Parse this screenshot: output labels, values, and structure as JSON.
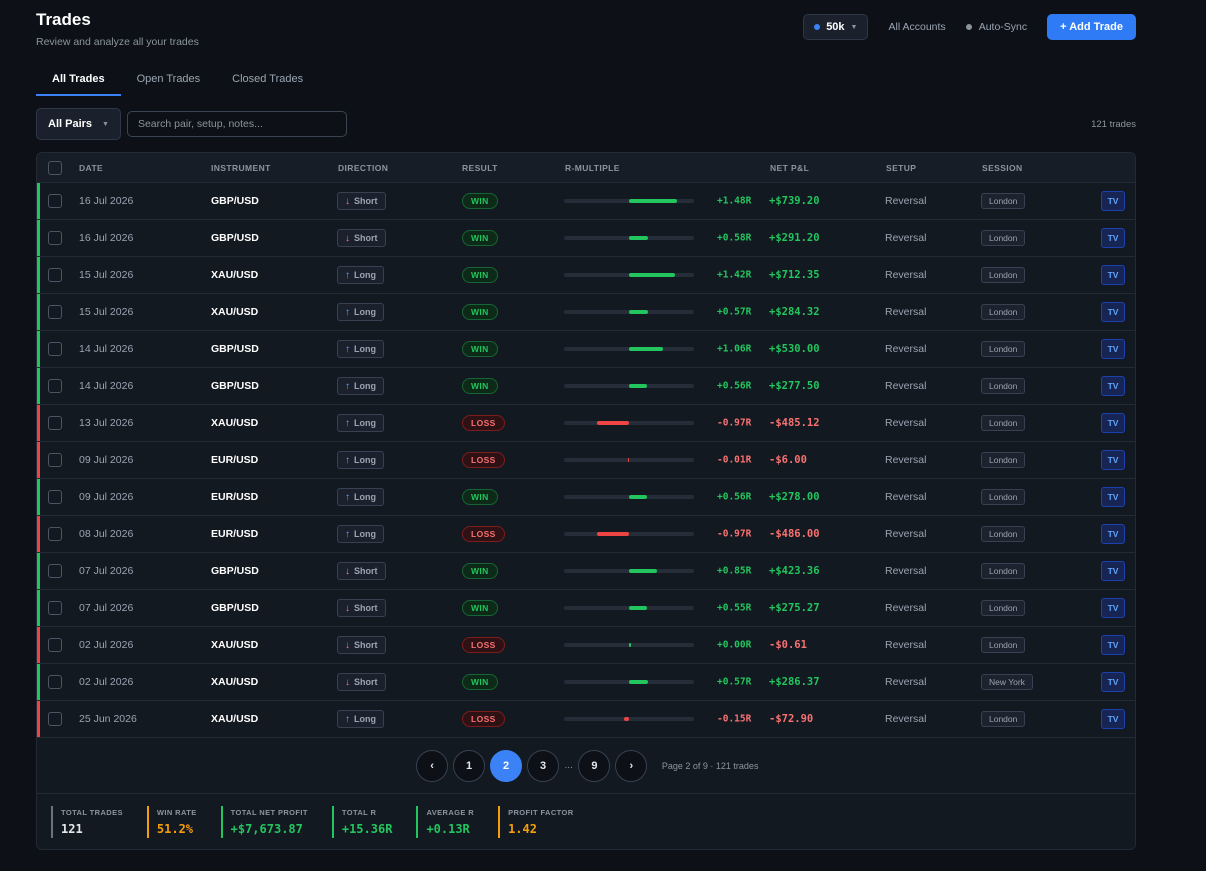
{
  "header": {
    "title": "Trades",
    "subtitle": "Review and analyze all your trades",
    "account_label": "50k",
    "all_accounts_label": "All Accounts",
    "auto_sync_label": "Auto-Sync",
    "add_trade_label": "+ Add Trade"
  },
  "tabs": [
    {
      "label": "All Trades"
    },
    {
      "label": "Open Trades"
    },
    {
      "label": "Closed Trades"
    }
  ],
  "filters": {
    "pair_select_label": "All Pairs",
    "search_placeholder": "Search pair, setup, notes...",
    "trade_count": "121 trades"
  },
  "columns": {
    "date": "DATE",
    "instrument": "INSTRUMENT",
    "direction": "DIRECTION",
    "result": "RESULT",
    "r_multiple": "R-MULTIPLE",
    "net_pnl": "NET P&L",
    "setup": "SETUP",
    "session": "SESSION"
  },
  "rows": [
    {
      "date": "16 Jul 2026",
      "instrument": "GBP/USD",
      "direction": "Short",
      "result": "WIN",
      "r": 1.48,
      "r_label": "+1.48R",
      "pnl": "+$739.20",
      "setup": "Reversal",
      "session": "London",
      "tv": "TV"
    },
    {
      "date": "16 Jul 2026",
      "instrument": "GBP/USD",
      "direction": "Short",
      "result": "WIN",
      "r": 0.58,
      "r_label": "+0.58R",
      "pnl": "+$291.20",
      "setup": "Reversal",
      "session": "London",
      "tv": "TV"
    },
    {
      "date": "15 Jul 2026",
      "instrument": "XAU/USD",
      "direction": "Long",
      "result": "WIN",
      "r": 1.42,
      "r_label": "+1.42R",
      "pnl": "+$712.35",
      "setup": "Reversal",
      "session": "London",
      "tv": "TV"
    },
    {
      "date": "15 Jul 2026",
      "instrument": "XAU/USD",
      "direction": "Long",
      "result": "WIN",
      "r": 0.57,
      "r_label": "+0.57R",
      "pnl": "+$284.32",
      "setup": "Reversal",
      "session": "London",
      "tv": "TV"
    },
    {
      "date": "14 Jul 2026",
      "instrument": "GBP/USD",
      "direction": "Long",
      "result": "WIN",
      "r": 1.06,
      "r_label": "+1.06R",
      "pnl": "+$530.00",
      "setup": "Reversal",
      "session": "London",
      "tv": "TV"
    },
    {
      "date": "14 Jul 2026",
      "instrument": "GBP/USD",
      "direction": "Long",
      "result": "WIN",
      "r": 0.56,
      "r_label": "+0.56R",
      "pnl": "+$277.50",
      "setup": "Reversal",
      "session": "London",
      "tv": "TV"
    },
    {
      "date": "13 Jul 2026",
      "instrument": "XAU/USD",
      "direction": "Long",
      "result": "LOSS",
      "r": -0.97,
      "r_label": "-0.97R",
      "pnl": "-$485.12",
      "setup": "Reversal",
      "session": "London",
      "tv": "TV"
    },
    {
      "date": "09 Jul 2026",
      "instrument": "EUR/USD",
      "direction": "Long",
      "result": "LOSS",
      "r": -0.01,
      "r_label": "-0.01R",
      "pnl": "-$6.00",
      "setup": "Reversal",
      "session": "London",
      "tv": "TV"
    },
    {
      "date": "09 Jul 2026",
      "instrument": "EUR/USD",
      "direction": "Long",
      "result": "WIN",
      "r": 0.56,
      "r_label": "+0.56R",
      "pnl": "+$278.00",
      "setup": "Reversal",
      "session": "London",
      "tv": "TV"
    },
    {
      "date": "08 Jul 2026",
      "instrument": "EUR/USD",
      "direction": "Long",
      "result": "LOSS",
      "r": -0.97,
      "r_label": "-0.97R",
      "pnl": "-$486.00",
      "setup": "Reversal",
      "session": "London",
      "tv": "TV"
    },
    {
      "date": "07 Jul 2026",
      "instrument": "GBP/USD",
      "direction": "Short",
      "result": "WIN",
      "r": 0.85,
      "r_label": "+0.85R",
      "pnl": "+$423.36",
      "setup": "Reversal",
      "session": "London",
      "tv": "TV"
    },
    {
      "date": "07 Jul 2026",
      "instrument": "GBP/USD",
      "direction": "Short",
      "result": "WIN",
      "r": 0.55,
      "r_label": "+0.55R",
      "pnl": "+$275.27",
      "setup": "Reversal",
      "session": "London",
      "tv": "TV"
    },
    {
      "date": "02 Jul 2026",
      "instrument": "XAU/USD",
      "direction": "Short",
      "result": "LOSS",
      "r": 0.0,
      "r_label": "+0.00R",
      "pnl": "-$0.61",
      "setup": "Reversal",
      "session": "London",
      "tv": "TV"
    },
    {
      "date": "02 Jul 2026",
      "instrument": "XAU/USD",
      "direction": "Short",
      "result": "WIN",
      "r": 0.57,
      "r_label": "+0.57R",
      "pnl": "+$286.37",
      "setup": "Reversal",
      "session": "New York",
      "tv": "TV"
    },
    {
      "date": "25 Jun 2026",
      "instrument": "XAU/USD",
      "direction": "Long",
      "result": "LOSS",
      "r": -0.15,
      "r_label": "-0.15R",
      "pnl": "-$72.90",
      "setup": "Reversal",
      "session": "London",
      "tv": "TV"
    }
  ],
  "pagination": {
    "prev": "‹",
    "pages": [
      "1",
      "2",
      "3"
    ],
    "ellipsis": "...",
    "last": "9",
    "next": "›",
    "current": "2",
    "info": "Page 2 of 9 · 121 trades"
  },
  "summary": [
    {
      "label": "TOTAL TRADES",
      "value": "121",
      "color": "#e5e7eb",
      "border": "#6b7280"
    },
    {
      "label": "WIN RATE",
      "value": "51.2%",
      "color": "#f59e0b",
      "border": "#f59e0b"
    },
    {
      "label": "TOTAL NET PROFIT",
      "value": "+$7,673.87",
      "color": "#22c55e",
      "border": "#22c55e"
    },
    {
      "label": "TOTAL R",
      "value": "+15.36R",
      "color": "#22c55e",
      "border": "#22c55e"
    },
    {
      "label": "AVERAGE R",
      "value": "+0.13R",
      "color": "#22c55e",
      "border": "#22c55e"
    },
    {
      "label": "PROFIT FACTOR",
      "value": "1.42",
      "color": "#f59e0b",
      "border": "#f59e0b"
    }
  ],
  "colors": {
    "accent": "#3b82f6",
    "win": "#22c55e",
    "loss": "#ef4444"
  }
}
